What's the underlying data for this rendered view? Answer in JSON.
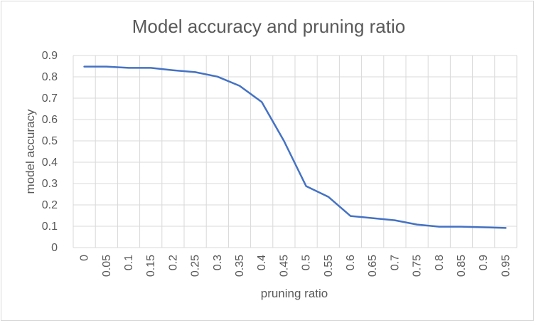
{
  "chart_data": {
    "type": "line",
    "title": "Model accuracy and pruning ratio",
    "xlabel": "pruning ratio",
    "ylabel": "model accuracy",
    "categories": [
      "0",
      "0.05",
      "0.1",
      "0.15",
      "0.2",
      "0.25",
      "0.3",
      "0.35",
      "0.4",
      "0.45",
      "0.5",
      "0.55",
      "0.6",
      "0.65",
      "0.7",
      "0.75",
      "0.8",
      "0.85",
      "0.9",
      "0.95"
    ],
    "y_ticks": [
      "0",
      "0.1",
      "0.2",
      "0.3",
      "0.4",
      "0.5",
      "0.6",
      "0.7",
      "0.8",
      "0.9"
    ],
    "series": [
      {
        "values": [
          0.848,
          0.848,
          0.842,
          0.842,
          0.831,
          0.822,
          0.801,
          0.758,
          0.682,
          0.5,
          0.288,
          0.238,
          0.148,
          0.138,
          0.128,
          0.108,
          0.098,
          0.098,
          0.095,
          0.092
        ],
        "color": "#4472c4"
      }
    ],
    "ylim": [
      0,
      0.9
    ],
    "grid": "vertical and horizontal",
    "legend": "none"
  }
}
